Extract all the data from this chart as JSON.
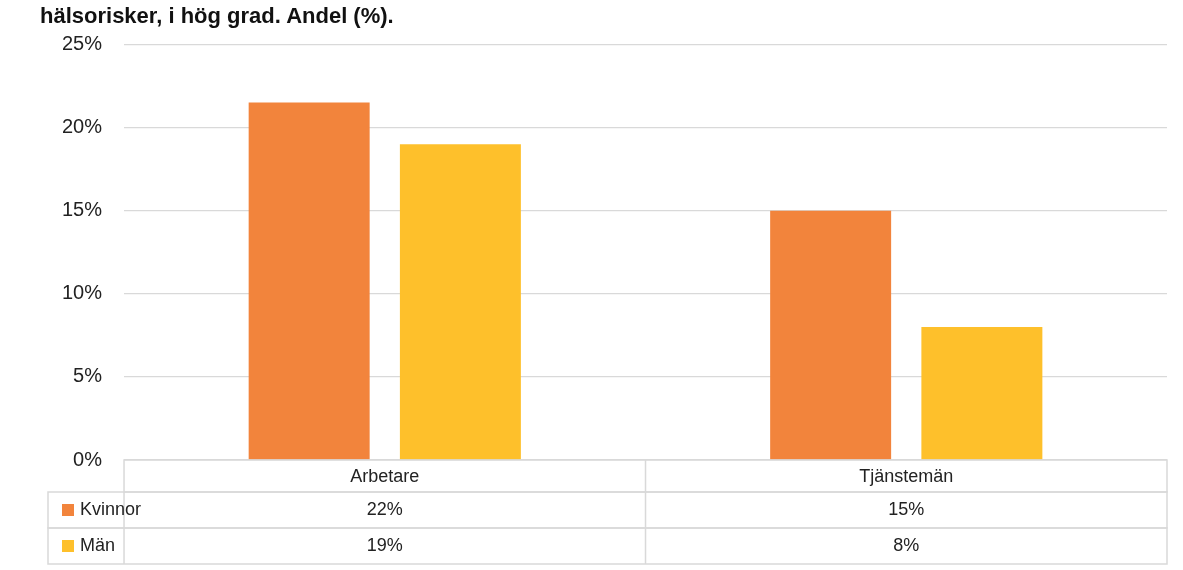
{
  "chart_data": {
    "type": "bar",
    "title": "hälsorisker, i hög grad. Andel (%).",
    "categories": [
      "Arbetare",
      "Tjänstemän"
    ],
    "series": [
      {
        "name": "Kvinnor",
        "color": "#f2843c",
        "values": [
          21.5,
          15
        ],
        "value_labels": [
          "22%",
          "15%"
        ]
      },
      {
        "name": "Män",
        "color": "#fec02b",
        "values": [
          19,
          8
        ],
        "value_labels": [
          "19%",
          "8%"
        ]
      }
    ],
    "ylim": [
      0,
      25
    ],
    "yticks": [
      {
        "value": 0,
        "label": "0%"
      },
      {
        "value": 5,
        "label": "5%"
      },
      {
        "value": 10,
        "label": "10%"
      },
      {
        "value": 15,
        "label": "15%"
      },
      {
        "value": 20,
        "label": "20%"
      },
      {
        "value": 25,
        "label": "25%"
      }
    ],
    "grid": "y",
    "legend": "bottom"
  }
}
